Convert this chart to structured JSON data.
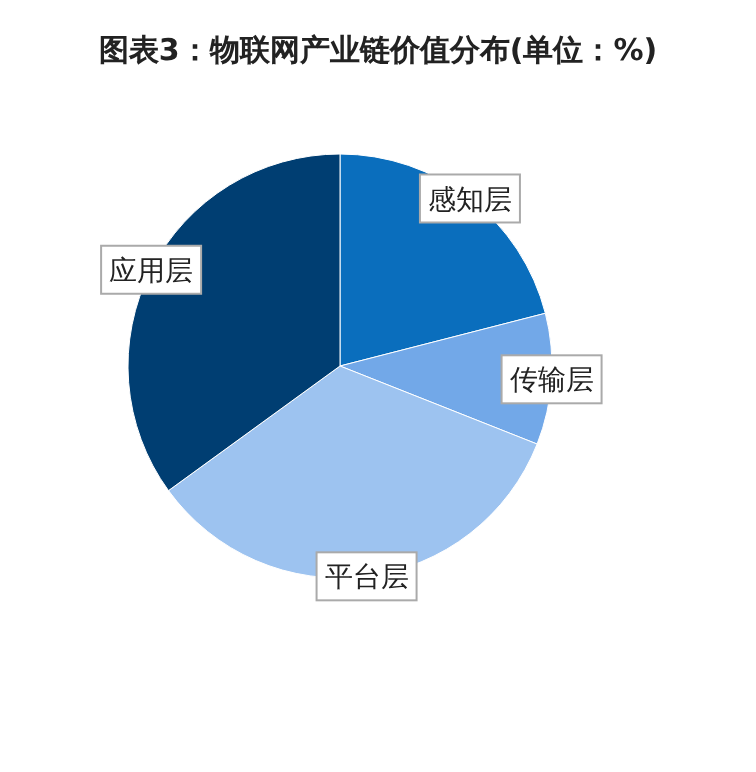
{
  "chart_data": {
    "type": "pie",
    "title": "图表3：物联网产业链价值分布(单位：%)",
    "categories": [
      "感知层",
      "传输层",
      "平台层",
      "应用层"
    ],
    "values": [
      21,
      10,
      34,
      35
    ],
    "colors": [
      "#0a6ebd",
      "#72a8e8",
      "#9dc3f0",
      "#003e72"
    ],
    "legend": false
  }
}
